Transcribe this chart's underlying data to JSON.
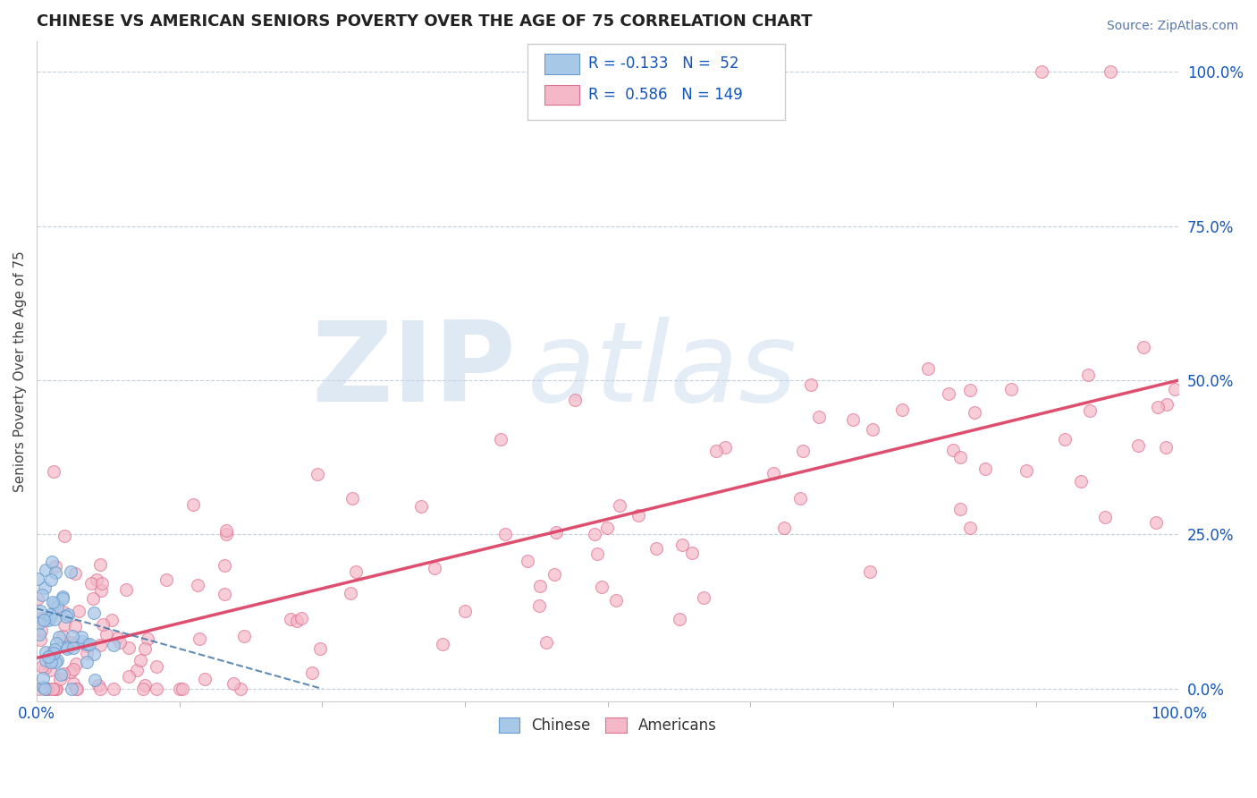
{
  "title": "CHINESE VS AMERICAN SENIORS POVERTY OVER THE AGE OF 75 CORRELATION CHART",
  "source": "Source: ZipAtlas.com",
  "ylabel": "Seniors Poverty Over the Age of 75",
  "xlim": [
    0.0,
    1.0
  ],
  "ylim": [
    -0.02,
    1.05
  ],
  "watermark_zip": "ZIP",
  "watermark_atlas": "atlas",
  "legend_R1": "-0.133",
  "legend_N1": "52",
  "legend_R2": "0.586",
  "legend_N2": "149",
  "color_chinese": "#a8c8e8",
  "color_american": "#f4b8c8",
  "edge_color_chinese": "#6699cc",
  "edge_color_american": "#e07090",
  "trend_color_chinese": "#4477aa",
  "trend_color_american": "#dd4466",
  "background_color": "#ffffff",
  "grid_color": "#aabbcc",
  "title_color": "#222222",
  "source_color": "#5577aa",
  "legend_text_color": "#1155bb",
  "axis_label_color": "#1155bb"
}
